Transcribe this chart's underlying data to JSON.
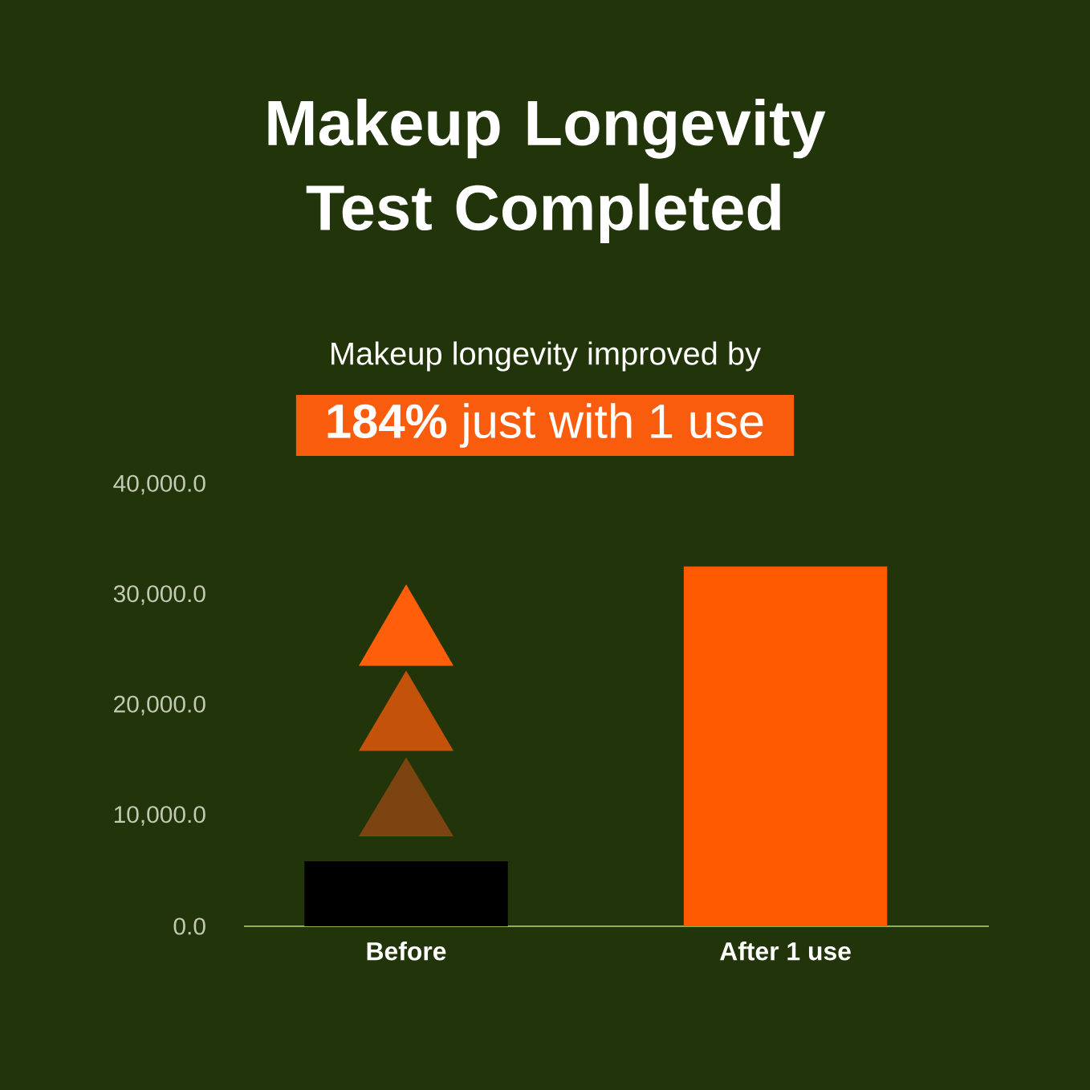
{
  "chart_data": {
    "type": "bar",
    "title": "Makeup Longevity Test Completed",
    "subtitle": "Makeup longevity improved by",
    "annotations": [
      "**184%** just with 1 use"
    ],
    "categories": [
      "Before",
      "After 1 use"
    ],
    "values": [
      5900,
      32600
    ],
    "colors": [
      "#000000",
      "#ff5a00"
    ],
    "ylim": [
      0,
      40000
    ],
    "yticks": [
      {
        "value": 0,
        "label": "0.0"
      },
      {
        "value": 10000,
        "label": "10,000.0"
      },
      {
        "value": 20000,
        "label": "20,000.0"
      },
      {
        "value": 30000,
        "label": "30,000.0"
      },
      {
        "value": 40000,
        "label": "40,000.0"
      }
    ]
  }
}
